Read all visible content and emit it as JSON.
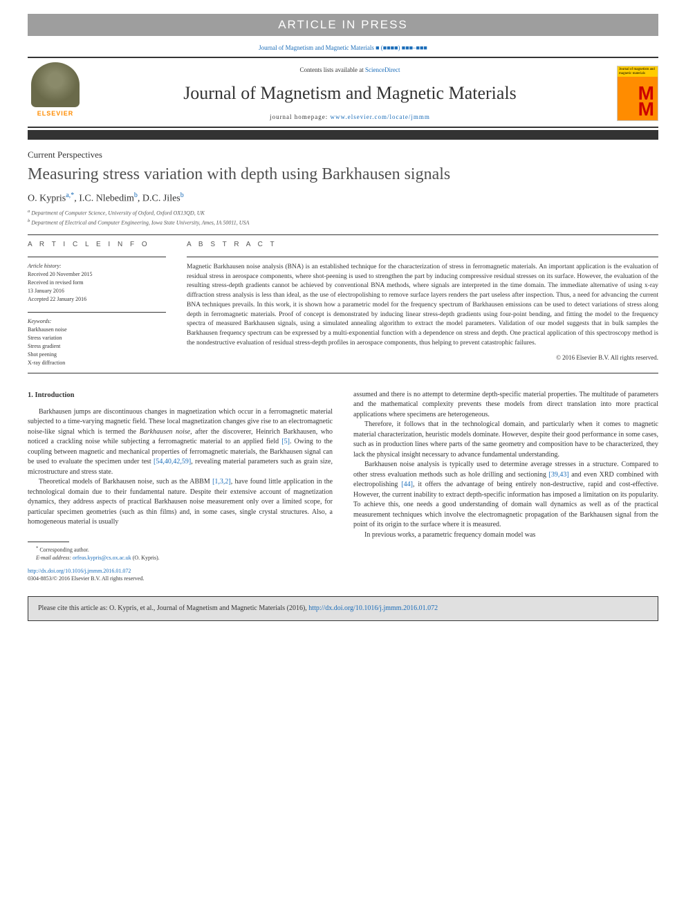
{
  "banner": {
    "article_in_press": "ARTICLE IN PRESS",
    "journal_ref_prefix": "Journal of Magnetism and Magnetic Materials",
    "journal_ref_suffix": "■ (■■■■) ■■■–■■■"
  },
  "header": {
    "contents_text": "Contents lists available at ",
    "contents_link": "ScienceDirect",
    "journal_title": "Journal of Magnetism and Magnetic Materials",
    "homepage_label": "journal homepage: ",
    "homepage_url": "www.elsevier.com/locate/jmmm",
    "elsevier_label": "ELSEVIER",
    "cover_text": "Journal of magnetism and magnetic materials"
  },
  "article": {
    "type": "Current Perspectives",
    "title": "Measuring stress variation with depth using Barkhausen signals",
    "authors_html": "O. Kypris",
    "author_sup_a": "a,",
    "author_sup_star": "*",
    "author2": ", I.C. Nlebedim",
    "author_sup_b": "b",
    "author3": ", D.C. Jiles",
    "author_sup_b2": "b",
    "affiliation_a": "Department of Computer Science, University of Oxford, Oxford OX13QD, UK",
    "affiliation_b": "Department of Electrical and Computer Engineering, Iowa State University, Ames, IA 50011, USA"
  },
  "info": {
    "heading": "A R T I C L E  I N F O",
    "history_label": "Article history:",
    "history": "Received 20 November 2015\nReceived in revised form\n13 January 2016\nAccepted 22 January 2016",
    "keywords_label": "Keywords:",
    "keywords": "Barkhausen noise\nStress variation\nStress gradient\nShot peening\nX-ray diffraction"
  },
  "abstract": {
    "heading": "A B S T R A C T",
    "text": "Magnetic Barkhausen noise analysis (BNA) is an established technique for the characterization of stress in ferromagnetic materials. An important application is the evaluation of residual stress in aerospace components, where shot-peening is used to strengthen the part by inducing compressive residual stresses on its surface. However, the evaluation of the resulting stress-depth gradients cannot be achieved by conventional BNA methods, where signals are interpreted in the time domain. The immediate alternative of using x-ray diffraction stress analysis is less than ideal, as the use of electropolishing to remove surface layers renders the part useless after inspection. Thus, a need for advancing the current BNA techniques prevails. In this work, it is shown how a parametric model for the frequency spectrum of Barkhausen emissions can be used to detect variations of stress along depth in ferromagnetic materials. Proof of concept is demonstrated by inducing linear stress-depth gradients using four-point bending, and fitting the model to the frequency spectra of measured Barkhausen signals, using a simulated annealing algorithm to extract the model parameters. Validation of our model suggests that in bulk samples the Barkhausen frequency spectrum can be expressed by a multi-exponential function with a dependence on stress and depth. One practical application of this spectroscopy method is the nondestructive evaluation of residual stress-depth profiles in aerospace components, thus helping to prevent catastrophic failures.",
    "copyright": "© 2016 Elsevier B.V. All rights reserved."
  },
  "body": {
    "section1_heading": "1.  Introduction",
    "col1_p1_a": "Barkhausen jumps are discontinuous changes in magnetization which occur in a ferromagnetic material subjected to a time-varying magnetic field. These local magnetization changes give rise to an electromagnetic noise-like signal which is termed the ",
    "col1_p1_italic": "Barkhausen noise",
    "col1_p1_b": ", after the discoverer, Heinrich Barkhausen, who noticed a crackling noise while subjecting a ferromagnetic material to an applied field ",
    "col1_p1_ref1": "[5]",
    "col1_p1_c": ". Owing to the coupling between magnetic and mechanical properties of ferromagnetic materials, the Barkhausen signal can be used to evaluate the specimen under test ",
    "col1_p1_ref2": "[54,40,42,59]",
    "col1_p1_d": ", revealing material parameters such as grain size, microstructure and stress state.",
    "col1_p2_a": "Theoretical models of Barkhausen noise, such as the ABBM ",
    "col1_p2_ref1": "[1,3,2]",
    "col1_p2_b": ", have found little application in the technological domain due to their fundamental nature. Despite their extensive account of magnetization dynamics, they address aspects of practical Barkhausen noise measurement only over a limited scope, for particular specimen geometries (such as thin films) and, in some cases, single crystal structures. Also, a homogeneous material is usually",
    "col2_p1": "assumed and there is no attempt to determine depth-specific material properties. The multitude of parameters and the mathematical complexity prevents these models from direct translation into more practical applications where specimens are heterogeneous.",
    "col2_p2": "Therefore, it follows that in the technological domain, and particularly when it comes to magnetic material characterization, heuristic models dominate. However, despite their good performance in some cases, such as in production lines where parts of the same geometry and composition have to be characterized, they lack the physical insight necessary to advance fundamental understanding.",
    "col2_p3_a": "Barkhausen noise analysis is typically used to determine average stresses in a structure. Compared to other stress evaluation methods such as hole drilling and sectioning ",
    "col2_p3_ref1": "[39,43]",
    "col2_p3_b": " and even XRD combined with electropolishing ",
    "col2_p3_ref2": "[44]",
    "col2_p3_c": ", it offers the advantage of being entirely non-destructive, rapid and cost-effective. However, the current inability to extract depth-specific information has imposed a limitation on its popularity. To achieve this, one needs a good understanding of domain wall dynamics as well as of the practical measurement techniques which involve the electromagnetic propagation of the Barkhausen signal from the point of its origin to the surface where it is measured.",
    "col2_p4": "In previous works, a parametric frequency domain model was"
  },
  "footnote": {
    "corresponding": "Corresponding author.",
    "email_label": "E-mail address:",
    "email": "orfeas.kypris@cs.ox.ac.uk",
    "email_name": "(O. Kypris)."
  },
  "doi": {
    "url": "http://dx.doi.org/10.1016/j.jmmm.2016.01.072",
    "issn_line": "0304-8853/© 2016 Elsevier B.V. All rights reserved."
  },
  "citation": {
    "text_a": "Please cite this article as: O. Kypris, et al., Journal of Magnetism and Magnetic Materials (2016), ",
    "url": "http://dx.doi.org/10.1016/j.jmmm.2016.01.072"
  },
  "colors": {
    "link": "#1a6cb8",
    "banner_bg": "#9e9e9e",
    "elsevier_orange": "#ff8c00",
    "text": "#333333",
    "citation_bg": "#e0e0e0"
  },
  "typography": {
    "body_font": "Georgia, 'Times New Roman', serif",
    "title_fontsize": 24,
    "journal_title_fontsize": 26,
    "abstract_fontsize": 9.5,
    "body_fontsize": 10
  }
}
